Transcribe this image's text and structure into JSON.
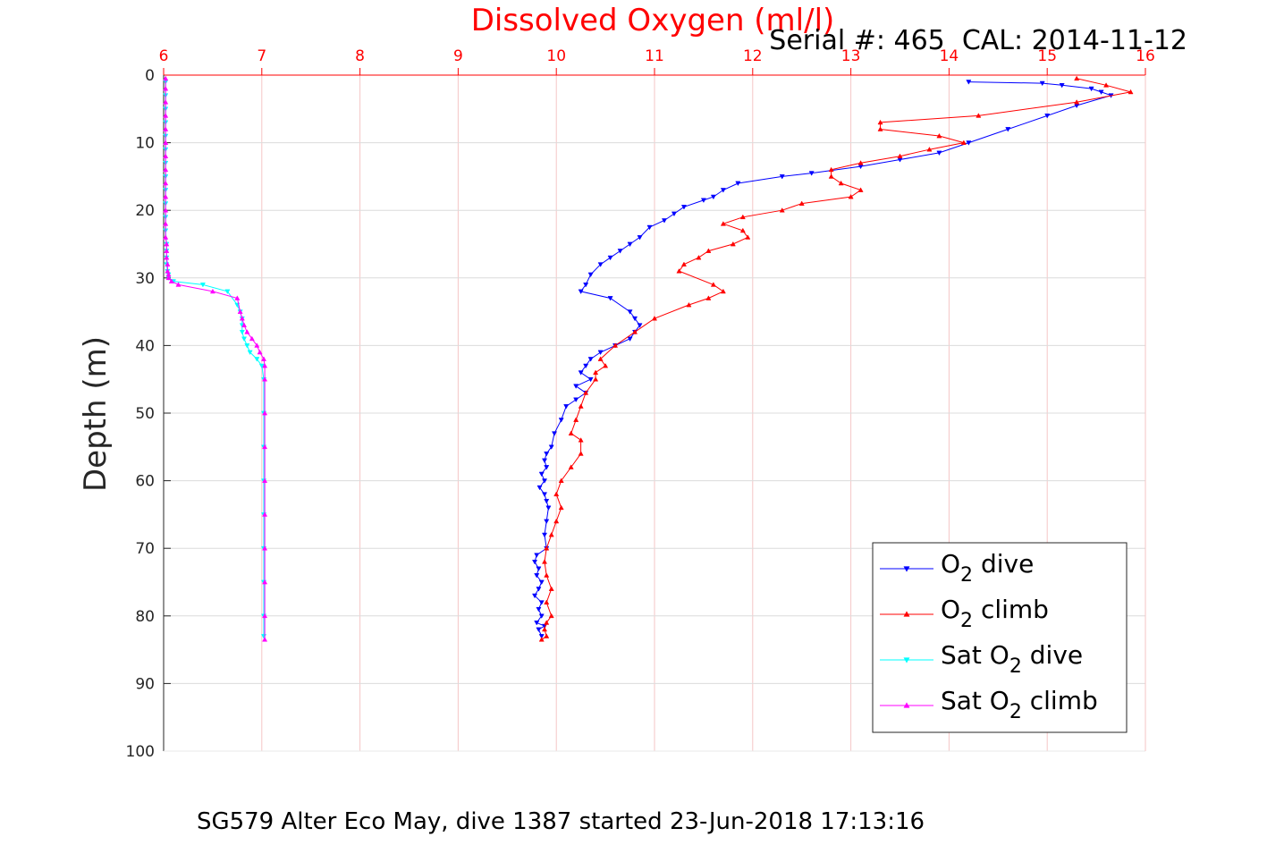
{
  "chart_data": {
    "type": "line",
    "title": "Dissolved Oxygen (ml/l)",
    "subtitle": "Serial #: 465  CAL: 2014-11-12",
    "caption": "SG579 Alter Eco May, dive 1387 started 23-Jun-2018 17:13:16",
    "xlabel": "",
    "ylabel": "Depth (m)",
    "xlim": [
      6,
      16
    ],
    "ylim": [
      0,
      100
    ],
    "y_reversed": true,
    "x_axis_position": "top",
    "xticks": [
      "6",
      "7",
      "8",
      "9",
      "10",
      "11",
      "12",
      "13",
      "14",
      "15",
      "16"
    ],
    "yticks": [
      "0",
      "10",
      "20",
      "30",
      "40",
      "50",
      "60",
      "70",
      "80",
      "90",
      "100"
    ],
    "grid": true,
    "legend_position": "bottom-right",
    "colors": {
      "title": "#ff0000",
      "xaxis": "#ff0000",
      "grid": "#f5c6c6",
      "dive": "#0000ff",
      "climb": "#ff0000",
      "sat_dive": "#00ffff",
      "sat_climb": "#ff00ff"
    },
    "legend": {
      "items": [
        {
          "prefix": "O",
          "sub": "2",
          "suffix": " dive"
        },
        {
          "prefix": "O",
          "sub": "2",
          "suffix": " climb"
        },
        {
          "prefix": "Sat O",
          "sub": "2",
          "suffix": " dive"
        },
        {
          "prefix": "Sat O",
          "sub": "2",
          "suffix": " climb"
        }
      ]
    },
    "series": [
      {
        "name": "O2 dive",
        "color": "#0000ff",
        "marker": "triangle-down",
        "x": [
          14.2,
          14.95,
          15.15,
          15.45,
          15.55,
          15.65,
          15.3,
          15.0,
          14.6,
          14.2,
          13.9,
          13.5,
          13.1,
          12.6,
          12.3,
          11.85,
          11.7,
          11.6,
          11.5,
          11.3,
          11.2,
          11.1,
          10.95,
          10.85,
          10.75,
          10.65,
          10.55,
          10.45,
          10.35,
          10.3,
          10.25,
          10.55,
          10.75,
          10.8,
          10.85,
          10.8,
          10.75,
          10.6,
          10.45,
          10.35,
          10.3,
          10.25,
          10.35,
          10.2,
          10.3,
          10.2,
          10.1,
          10.05,
          9.98,
          9.95,
          9.9,
          9.88,
          9.9,
          9.85,
          9.88,
          9.83,
          9.88,
          9.9,
          9.92,
          9.9,
          9.88,
          9.9,
          9.8,
          9.78,
          9.82,
          9.8,
          9.85,
          9.82,
          9.78,
          9.85,
          9.82,
          9.85,
          9.8,
          9.88,
          9.82,
          9.85
        ],
        "y": [
          1,
          1.2,
          1.5,
          2,
          2.5,
          3,
          4.5,
          6,
          8,
          10,
          11.5,
          12.5,
          13.5,
          14.5,
          15,
          16,
          17,
          18,
          18.5,
          19.5,
          20.5,
          21.5,
          22.5,
          24,
          25,
          26,
          27,
          28,
          29.5,
          31,
          32,
          33,
          35,
          36,
          37,
          38,
          39,
          40,
          41,
          42,
          43,
          44,
          45,
          46,
          47,
          48,
          49,
          51,
          53,
          55,
          56,
          57,
          58,
          59,
          60,
          61,
          62,
          63,
          64,
          66,
          68,
          70,
          71,
          72,
          73,
          74,
          75,
          76,
          77,
          78,
          79,
          80,
          81,
          81.5,
          82,
          83
        ]
      },
      {
        "name": "O2 climb",
        "color": "#ff0000",
        "marker": "triangle-up",
        "x": [
          15.3,
          15.6,
          15.85,
          15.3,
          14.3,
          13.3,
          13.3,
          13.9,
          14.15,
          13.8,
          13.5,
          13.1,
          12.8,
          12.8,
          12.9,
          13.1,
          13.0,
          12.5,
          12.3,
          11.9,
          11.7,
          11.9,
          11.95,
          11.8,
          11.55,
          11.45,
          11.3,
          11.25,
          11.6,
          11.7,
          11.55,
          11.35,
          11.0,
          10.8,
          10.6,
          10.45,
          10.5,
          10.4,
          10.4,
          10.3,
          10.25,
          10.2,
          10.15,
          10.25,
          10.25,
          10.15,
          10.05,
          10.0,
          10.05,
          10.0,
          9.95,
          9.9,
          9.88,
          9.9,
          9.95,
          9.9,
          9.95,
          9.9,
          9.88,
          9.9,
          9.85
        ],
        "y": [
          0.5,
          1.5,
          2.5,
          4,
          6,
          7,
          8,
          9,
          10,
          11,
          12,
          13,
          14,
          15,
          16,
          17,
          18,
          19,
          20,
          21,
          22,
          23,
          24,
          25,
          26,
          27,
          28,
          29,
          31,
          32,
          33,
          34,
          36,
          38,
          40,
          42,
          43,
          44,
          45,
          47,
          49,
          51,
          53,
          54,
          56,
          58,
          60,
          62,
          64,
          66,
          68,
          70,
          72,
          74,
          76,
          78,
          80,
          81,
          82,
          83,
          83.5
        ]
      },
      {
        "name": "Sat O2 dive",
        "color": "#00ffff",
        "marker": "triangle-down",
        "x": [
          6.02,
          6.02,
          6.02,
          6.02,
          6.02,
          6.02,
          6.02,
          6.02,
          6.02,
          6.02,
          6.02,
          6.02,
          6.03,
          6.03,
          6.03,
          6.03,
          6.04,
          6.05,
          6.05,
          6.1,
          6.4,
          6.65,
          6.75,
          6.78,
          6.8,
          6.8,
          6.8,
          6.82,
          6.85,
          6.88,
          6.95,
          7.0,
          7.02,
          7.02,
          7.02,
          7.02,
          7.02,
          7.02,
          7.02,
          7.02,
          7.02
        ],
        "y": [
          1,
          3,
          5,
          7,
          9,
          11,
          13,
          15,
          17,
          19,
          21,
          23,
          25,
          26,
          27,
          28,
          29,
          29.5,
          30,
          30.5,
          31,
          32,
          34,
          35,
          36,
          37,
          38,
          39,
          40,
          41,
          42,
          43,
          45,
          50,
          55,
          60,
          65,
          70,
          75,
          80,
          83
        ]
      },
      {
        "name": "Sat O2 climb",
        "color": "#ff00ff",
        "marker": "triangle-up",
        "x": [
          6.02,
          6.02,
          6.02,
          6.02,
          6.02,
          6.02,
          6.02,
          6.02,
          6.02,
          6.02,
          6.02,
          6.02,
          6.02,
          6.03,
          6.03,
          6.03,
          6.04,
          6.04,
          6.05,
          6.05,
          6.08,
          6.15,
          6.5,
          6.75,
          6.78,
          6.8,
          6.82,
          6.85,
          6.9,
          6.95,
          6.98,
          7.02,
          7.03,
          7.03,
          7.03,
          7.03,
          7.03,
          7.03,
          7.03,
          7.03,
          7.03,
          7.03
        ],
        "y": [
          0.5,
          2,
          4,
          6,
          8,
          10,
          12,
          14,
          16,
          18,
          20,
          22,
          24,
          25,
          26,
          27,
          28,
          29,
          29.5,
          30,
          30.5,
          31,
          32,
          33,
          35,
          36,
          37,
          38,
          39,
          40,
          41,
          42,
          43,
          45,
          50,
          55,
          60,
          65,
          70,
          75,
          80,
          83.5
        ]
      }
    ]
  }
}
